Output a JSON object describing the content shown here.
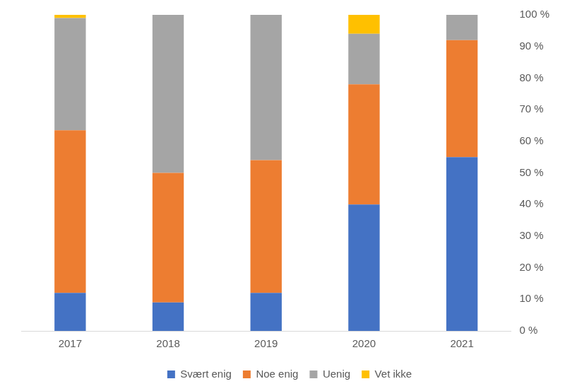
{
  "chart_data": {
    "type": "bar",
    "categories": [
      "2017",
      "2018",
      "2019",
      "2020",
      "2021"
    ],
    "series": [
      {
        "name": "Svært enig",
        "color": "#4472c4",
        "values": [
          12,
          9,
          12,
          40,
          55
        ]
      },
      {
        "name": "Noe enig",
        "color": "#ed7d31",
        "values": [
          51.5,
          41,
          42,
          38,
          37
        ]
      },
      {
        "name": "Uenig",
        "color": "#a5a5a5",
        "values": [
          35.5,
          50,
          46,
          16,
          8
        ]
      },
      {
        "name": "Vet ikke",
        "color": "#ffc000",
        "values": [
          1,
          0,
          0,
          6,
          0
        ]
      }
    ],
    "ylim": [
      0,
      100
    ],
    "yticks": [
      {
        "value": 0,
        "label": "0 %"
      },
      {
        "value": 10,
        "label": "10 %"
      },
      {
        "value": 20,
        "label": "20 %"
      },
      {
        "value": 30,
        "label": "30 %"
      },
      {
        "value": 40,
        "label": "40 %"
      },
      {
        "value": 50,
        "label": "50 %"
      },
      {
        "value": 60,
        "label": "60 %"
      },
      {
        "value": 70,
        "label": "70 %"
      },
      {
        "value": 80,
        "label": "80 %"
      },
      {
        "value": 90,
        "label": "90 %"
      },
      {
        "value": 100,
        "label": "100 %"
      }
    ],
    "stacked": true,
    "grid": false,
    "legend": "bottom"
  }
}
